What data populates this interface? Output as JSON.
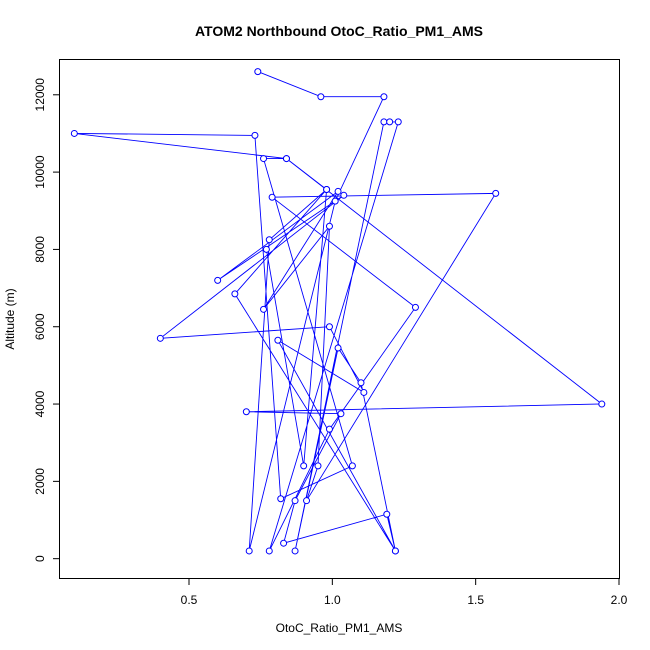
{
  "chart_data": {
    "type": "line",
    "title": "ATOM2 Northbound OtoC_Ratio_PM1_AMS",
    "xlabel": "OtoC_Ratio_PM1_AMS",
    "ylabel": "Altitude (m)",
    "xlim": [
      0.05,
      2.0
    ],
    "ylim": [
      -500,
      12900
    ],
    "xticks": [
      0.5,
      1.0,
      1.5,
      2.0
    ],
    "xtick_labels": [
      "0.5",
      "1.0",
      "1.5",
      "2.0"
    ],
    "yticks": [
      0,
      2000,
      4000,
      6000,
      8000,
      10000,
      12000
    ],
    "ytick_labels": [
      "0",
      "2000",
      "4000",
      "6000",
      "8000",
      "10000",
      "12000"
    ],
    "grid": false,
    "legend": "none",
    "series": [
      {
        "color": "#0000ff",
        "marker": "open-circle",
        "x": [
          0.74,
          0.96,
          1.18,
          1.01,
          0.71,
          0.78,
          0.98,
          0.84,
          0.76,
          1.07,
          0.82,
          0.73,
          0.1,
          0.84,
          1.94,
          0.7,
          1.03,
          0.87,
          0.83,
          1.19,
          1.22,
          1.1,
          1.02,
          0.87,
          1.18,
          1.2,
          1.23,
          0.78,
          0.99,
          1.29,
          0.79,
          1.57,
          0.91,
          0.95,
          0.99,
          0.76,
          1.02,
          0.6,
          1.04,
          0.4,
          0.99,
          1.11,
          0.81,
          1.22,
          0.66,
          0.98,
          0.9,
          0.77
        ],
        "y": [
          12600,
          11950,
          11950,
          9250,
          200,
          8250,
          9550,
          10350,
          10350,
          2400,
          1550,
          10950,
          11000,
          10350,
          4000,
          3800,
          3750,
          1500,
          400,
          1150,
          200,
          4550,
          5450,
          200,
          11300,
          11300,
          11300,
          200,
          3350,
          6500,
          9350,
          9450,
          1500,
          2400,
          8600,
          6450,
          9500,
          7200,
          9400,
          5700,
          6000,
          4300,
          5650,
          200,
          6850,
          9550,
          2400,
          8000
        ]
      }
    ]
  }
}
